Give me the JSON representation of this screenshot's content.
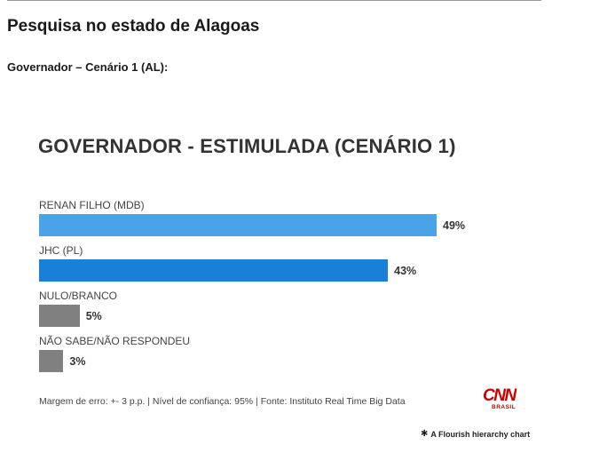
{
  "page": {
    "title": "Pesquisa no estado de Alagoas",
    "subtitle": "Governador – Cenário 1 (AL):"
  },
  "chart_data": {
    "type": "bar",
    "orientation": "horizontal",
    "title": "GOVERNADOR - ESTIMULADA (CENÁRIO 1)",
    "categories": [
      "RENAN FILHO (MDB)",
      "JHC (PL)",
      "NULO/BRANCO",
      "NÃO SABE/NÃO RESPONDEU"
    ],
    "values": [
      49,
      43,
      5,
      3
    ],
    "value_labels": [
      "49%",
      "43%",
      "5%",
      "3%"
    ],
    "colors": [
      "#4aa3e6",
      "#1a7fd6",
      "#808080",
      "#808080"
    ],
    "xlim": [
      0,
      49
    ],
    "grid": false
  },
  "footer": {
    "note": "Margem de erro: +- 3 p.p. | Nível de confiança: 95% | Fonte: Instituto Real Time Big Data",
    "logo": {
      "main": "CNN",
      "sub": "BRASIL"
    },
    "flourish_icon": "flourish-star-icon",
    "flourish_credit": "A Flourish hierarchy chart"
  }
}
